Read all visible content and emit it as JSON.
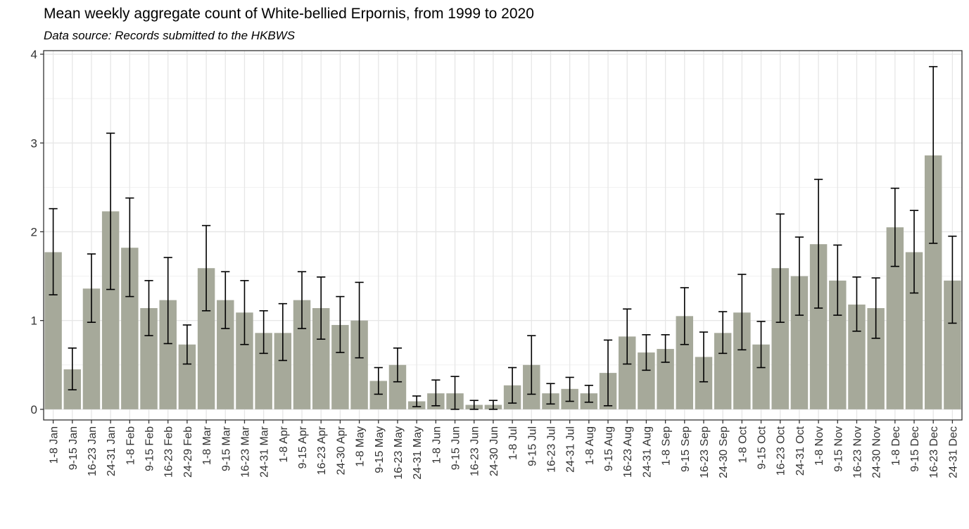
{
  "chart_data": {
    "type": "bar",
    "title": "Mean weekly aggregate count of White-bellied Erpornis, from 1999 to 2020",
    "subtitle": "Data source: Records submitted to the HKBWS",
    "xlabel": "",
    "ylabel": "",
    "ylim": [
      -0.12,
      4.04
    ],
    "yticks": [
      0,
      1,
      2,
      3,
      4
    ],
    "grid": true,
    "bar_color": "#a6a99a",
    "categories": [
      "1-8 Jan",
      "9-15 Jan",
      "16-23 Jan",
      "24-31 Jan",
      "1-8 Feb",
      "9-15 Feb",
      "16-23 Feb",
      "24-29 Feb",
      "1-8 Mar",
      "9-15 Mar",
      "16-23 Mar",
      "24-31 Mar",
      "1-8 Apr",
      "9-15 Apr",
      "16-23 Apr",
      "24-30 Apr",
      "1-8 May",
      "9-15 May",
      "16-23 May",
      "24-31 May",
      "1-8 Jun",
      "9-15 Jun",
      "16-23 Jun",
      "24-30 Jun",
      "1-8 Jul",
      "9-15 Jul",
      "16-23 Jul",
      "24-31 Jul",
      "1-8 Aug",
      "9-15 Aug",
      "16-23 Aug",
      "24-31 Aug",
      "1-8 Sep",
      "9-15 Sep",
      "16-23 Sep",
      "24-30 Sep",
      "1-8 Oct",
      "9-15 Oct",
      "16-23 Oct",
      "24-31 Oct",
      "1-8 Nov",
      "9-15 Nov",
      "16-23 Nov",
      "24-30 Nov",
      "1-8 Dec",
      "9-15 Dec",
      "16-23 Dec",
      "24-31 Dec"
    ],
    "values": [
      1.77,
      0.45,
      1.36,
      2.23,
      1.82,
      1.14,
      1.23,
      0.73,
      1.59,
      1.23,
      1.09,
      0.86,
      0.86,
      1.23,
      1.14,
      0.95,
      1.0,
      0.32,
      0.5,
      0.09,
      0.18,
      0.18,
      0.05,
      0.05,
      0.27,
      0.5,
      0.18,
      0.23,
      0.18,
      0.41,
      0.82,
      0.64,
      0.68,
      1.05,
      0.59,
      0.86,
      1.09,
      0.73,
      1.59,
      1.5,
      1.86,
      1.45,
      1.18,
      1.14,
      2.05,
      1.77,
      2.86,
      1.45
    ],
    "error_low": [
      1.29,
      0.22,
      0.98,
      1.35,
      1.27,
      0.83,
      0.74,
      0.51,
      1.11,
      0.91,
      0.73,
      0.63,
      0.55,
      0.91,
      0.79,
      0.64,
      0.58,
      0.17,
      0.31,
      0.03,
      0.04,
      0.0,
      0.0,
      0.0,
      0.07,
      0.17,
      0.06,
      0.09,
      0.08,
      0.04,
      0.51,
      0.44,
      0.53,
      0.73,
      0.31,
      0.63,
      0.67,
      0.47,
      0.98,
      1.06,
      1.14,
      1.06,
      0.88,
      0.8,
      1.61,
      1.31,
      1.87,
      0.97
    ],
    "error_high": [
      2.26,
      0.69,
      1.75,
      3.11,
      2.38,
      1.45,
      1.71,
      0.95,
      2.07,
      1.55,
      1.45,
      1.11,
      1.19,
      1.55,
      1.49,
      1.27,
      1.43,
      0.47,
      0.69,
      0.15,
      0.33,
      0.37,
      0.1,
      0.1,
      0.47,
      0.83,
      0.29,
      0.36,
      0.27,
      0.78,
      1.13,
      0.84,
      0.84,
      1.37,
      0.87,
      1.1,
      1.52,
      0.99,
      2.2,
      1.94,
      2.59,
      1.85,
      1.49,
      1.48,
      2.49,
      2.24,
      3.86,
      1.95
    ]
  }
}
